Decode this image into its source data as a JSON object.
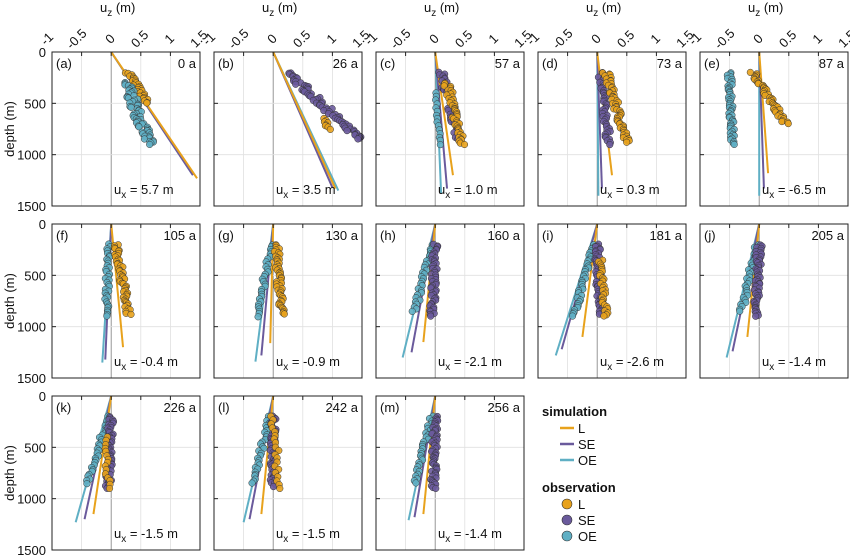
{
  "figure": {
    "xlabel": "u_z (m)",
    "ylabel": "depth (m)",
    "x_ticks": [
      "-1",
      "-0.5",
      "0",
      "0.5",
      "1",
      "1.5"
    ],
    "y_ticks": [
      "0",
      "500",
      "1000",
      "1500"
    ],
    "ux_prefix": "u",
    "ux_sub": "x"
  },
  "legend": {
    "simulation_title": "simulation",
    "observation_title": "observation",
    "items": [
      {
        "key": "L",
        "label": "L",
        "color": "#e8a21c"
      },
      {
        "key": "SE",
        "label": "SE",
        "color": "#6a5a9c"
      },
      {
        "key": "OE",
        "label": "OE",
        "color": "#5fafc4"
      }
    ]
  },
  "chart_data": {
    "type": "scatter",
    "xlim": [
      -1,
      1.5
    ],
    "ylim": [
      1500,
      0
    ],
    "grid": true,
    "panels": [
      {
        "label": "(a)",
        "time": "0 a",
        "ux": "= 5.7 m",
        "sim": {
          "L": [
            [
              0,
              0
            ],
            [
              1.45,
              1230
            ]
          ],
          "SE": [
            [
              0,
              0
            ],
            [
              1.38,
              1200
            ]
          ],
          "OE": [
            [
              0,
              0
            ],
            [
              1.36,
              1180
            ]
          ]
        },
        "obs": [
          {
            "key": "L",
            "x0": 0.3,
            "x1": 0.6,
            "d0": 200,
            "d1": 500,
            "n": 28,
            "j": 0.06
          },
          {
            "key": "OE",
            "x0": 0.25,
            "x1": 0.65,
            "d0": 300,
            "d1": 900,
            "n": 60,
            "j": 0.09
          }
        ]
      },
      {
        "label": "(b)",
        "time": "26 a",
        "ux": "= 3.5 m",
        "sim": {
          "L": [
            [
              0,
              0
            ],
            [
              1.05,
              1330
            ]
          ],
          "SE": [
            [
              0,
              0
            ],
            [
              1.0,
              1320
            ]
          ],
          "OE": [
            [
              0,
              0
            ],
            [
              1.1,
              1350
            ]
          ]
        },
        "obs": [
          {
            "key": "SE",
            "x0": 0.25,
            "x1": 1.45,
            "d0": 200,
            "d1": 850,
            "n": 65,
            "j": 0.09
          },
          {
            "key": "L",
            "x0": 0.85,
            "x1": 0.95,
            "d0": 650,
            "d1": 750,
            "n": 8,
            "j": 0.04
          }
        ]
      },
      {
        "label": "(c)",
        "time": "57 a",
        "ux": "= 1.0 m",
        "sim": {
          "L": [
            [
              0,
              0
            ],
            [
              0.3,
              1200
            ]
          ],
          "SE": [
            [
              0,
              0
            ],
            [
              0.2,
              1330
            ]
          ],
          "OE": [
            [
              0,
              0
            ],
            [
              0.1,
              1380
            ]
          ]
        },
        "obs": [
          {
            "key": "SE",
            "x0": 0.1,
            "x1": 0.4,
            "d0": 200,
            "d1": 850,
            "n": 50,
            "j": 0.06
          },
          {
            "key": "L",
            "x0": 0.2,
            "x1": 0.45,
            "d0": 300,
            "d1": 900,
            "n": 45,
            "j": 0.06
          },
          {
            "key": "OE",
            "x0": 0.02,
            "x1": 0.08,
            "d0": 400,
            "d1": 900,
            "n": 15,
            "j": 0.03
          }
        ]
      },
      {
        "label": "(d)",
        "time": "73 a",
        "ux": "= 0.3 m",
        "sim": {
          "L": [
            [
              0,
              0
            ],
            [
              0.25,
              1200
            ]
          ],
          "SE": [
            [
              0,
              0
            ],
            [
              0.08,
              1330
            ]
          ],
          "OE": [
            [
              0,
              0
            ],
            [
              0.02,
              1400
            ]
          ]
        },
        "obs": [
          {
            "key": "SE",
            "x0": 0.05,
            "x1": 0.2,
            "d0": 200,
            "d1": 900,
            "n": 45,
            "j": 0.05
          },
          {
            "key": "L",
            "x0": 0.15,
            "x1": 0.5,
            "d0": 200,
            "d1": 880,
            "n": 55,
            "j": 0.06
          }
        ]
      },
      {
        "label": "(e)",
        "time": "87 a",
        "ux": "= -6.5 m",
        "sim": {
          "L": [
            [
              0,
              0
            ],
            [
              0.15,
              1180
            ]
          ],
          "SE": [
            [
              0,
              0
            ],
            [
              0.08,
              1330
            ]
          ],
          "OE": [
            [
              0,
              0
            ],
            [
              0.0,
              1400
            ]
          ]
        },
        "obs": [
          {
            "key": "OE",
            "x0": -0.5,
            "x1": -0.45,
            "d0": 200,
            "d1": 900,
            "n": 50,
            "j": 0.04
          },
          {
            "key": "L",
            "x0": -0.1,
            "x1": 0.45,
            "d0": 200,
            "d1": 700,
            "n": 45,
            "j": 0.05
          }
        ]
      },
      {
        "label": "(f)",
        "time": "105 a",
        "ux": "= -0.4 m",
        "sim": {
          "L": [
            [
              0,
              0
            ],
            [
              0.2,
              1200
            ]
          ],
          "SE": [
            [
              0,
              0
            ],
            [
              -0.1,
              1320
            ]
          ],
          "OE": [
            [
              0,
              0
            ],
            [
              -0.15,
              1350
            ]
          ]
        },
        "obs": [
          {
            "key": "OE",
            "x0": -0.05,
            "x1": -0.08,
            "d0": 200,
            "d1": 900,
            "n": 35,
            "j": 0.04
          },
          {
            "key": "L",
            "x0": 0.08,
            "x1": 0.3,
            "d0": 200,
            "d1": 880,
            "n": 50,
            "j": 0.05
          }
        ]
      },
      {
        "label": "(g)",
        "time": "130 a",
        "ux": "= -0.9 m",
        "sim": {
          "L": [
            [
              0,
              0
            ],
            [
              -0.05,
              1160
            ]
          ],
          "SE": [
            [
              0,
              0
            ],
            [
              -0.2,
              1280
            ]
          ],
          "OE": [
            [
              0,
              0
            ],
            [
              -0.3,
              1340
            ]
          ]
        },
        "obs": [
          {
            "key": "OE",
            "x0": -0.05,
            "x1": -0.25,
            "d0": 200,
            "d1": 900,
            "n": 30,
            "j": 0.04
          },
          {
            "key": "L",
            "x0": 0.05,
            "x1": 0.15,
            "d0": 200,
            "d1": 880,
            "n": 50,
            "j": 0.05
          }
        ]
      },
      {
        "label": "(h)",
        "time": "160 a",
        "ux": "= -2.1 m",
        "sim": {
          "L": [
            [
              0,
              0
            ],
            [
              -0.2,
              1150
            ]
          ],
          "SE": [
            [
              0,
              0
            ],
            [
              -0.4,
              1250
            ]
          ],
          "OE": [
            [
              0,
              0
            ],
            [
              -0.55,
              1300
            ]
          ]
        },
        "obs": [
          {
            "key": "OE",
            "x0": -0.05,
            "x1": -0.35,
            "d0": 200,
            "d1": 850,
            "n": 30,
            "j": 0.04
          },
          {
            "key": "SE",
            "x0": 0.0,
            "x1": -0.05,
            "d0": 200,
            "d1": 900,
            "n": 50,
            "j": 0.05
          }
        ]
      },
      {
        "label": "(i)",
        "time": "181 a",
        "ux": "= -2.6 m",
        "sim": {
          "L": [
            [
              0,
              0
            ],
            [
              -0.25,
              1100
            ]
          ],
          "SE": [
            [
              0,
              0
            ],
            [
              -0.6,
              1220
            ]
          ],
          "OE": [
            [
              0,
              0
            ],
            [
              -0.7,
              1280
            ]
          ]
        },
        "obs": [
          {
            "key": "OE",
            "x0": -0.05,
            "x1": -0.4,
            "d0": 200,
            "d1": 900,
            "n": 35,
            "j": 0.04
          },
          {
            "key": "SE",
            "x0": 0.0,
            "x1": 0.05,
            "d0": 200,
            "d1": 880,
            "n": 55,
            "j": 0.05
          },
          {
            "key": "L",
            "x0": 0.05,
            "x1": 0.15,
            "d0": 350,
            "d1": 900,
            "n": 30,
            "j": 0.05
          }
        ]
      },
      {
        "label": "(j)",
        "time": "205 a",
        "ux": "= -1.4 m",
        "sim": {
          "L": [
            [
              0,
              0
            ],
            [
              -0.2,
              1100
            ]
          ],
          "SE": [
            [
              0,
              0
            ],
            [
              -0.45,
              1240
            ]
          ],
          "OE": [
            [
              0,
              0
            ],
            [
              -0.55,
              1300
            ]
          ]
        },
        "obs": [
          {
            "key": "OE",
            "x0": -0.05,
            "x1": -0.3,
            "d0": 200,
            "d1": 850,
            "n": 30,
            "j": 0.04
          },
          {
            "key": "SE",
            "x0": 0.0,
            "x1": -0.05,
            "d0": 200,
            "d1": 900,
            "n": 55,
            "j": 0.05
          }
        ]
      },
      {
        "label": "(k)",
        "time": "226 a",
        "ux": "= -1.5 m",
        "sim": {
          "L": [
            [
              0,
              0
            ],
            [
              -0.3,
              1150
            ]
          ],
          "SE": [
            [
              0,
              0
            ],
            [
              -0.45,
              1200
            ]
          ],
          "OE": [
            [
              0,
              0
            ],
            [
              -0.6,
              1230
            ]
          ]
        },
        "obs": [
          {
            "key": "OE",
            "x0": -0.05,
            "x1": -0.4,
            "d0": 200,
            "d1": 850,
            "n": 30,
            "j": 0.04
          },
          {
            "key": "SE",
            "x0": 0.0,
            "x1": -0.05,
            "d0": 200,
            "d1": 900,
            "n": 55,
            "j": 0.05
          },
          {
            "key": "L",
            "x0": -0.1,
            "x1": -0.05,
            "d0": 400,
            "d1": 900,
            "n": 15,
            "j": 0.04
          }
        ]
      },
      {
        "label": "(l)",
        "time": "242 a",
        "ux": "= -1.5 m",
        "sim": {
          "L": [
            [
              0,
              0
            ],
            [
              -0.2,
              1150
            ]
          ],
          "SE": [
            [
              0,
              0
            ],
            [
              -0.4,
              1200
            ]
          ],
          "OE": [
            [
              0,
              0
            ],
            [
              -0.5,
              1230
            ]
          ]
        },
        "obs": [
          {
            "key": "OE",
            "x0": -0.05,
            "x1": -0.35,
            "d0": 200,
            "d1": 850,
            "n": 30,
            "j": 0.04
          },
          {
            "key": "SE",
            "x0": 0.0,
            "x1": 0.0,
            "d0": 200,
            "d1": 880,
            "n": 55,
            "j": 0.05
          },
          {
            "key": "L",
            "x0": 0.0,
            "x1": 0.1,
            "d0": 200,
            "d1": 900,
            "n": 20,
            "j": 0.05
          }
        ]
      },
      {
        "label": "(m)",
        "time": "256 a",
        "ux": "= -1.4 m",
        "sim": {
          "L": [
            [
              0,
              0
            ],
            [
              -0.2,
              1150
            ]
          ],
          "SE": [
            [
              0,
              0
            ],
            [
              -0.35,
              1180
            ]
          ],
          "OE": [
            [
              0,
              0
            ],
            [
              -0.45,
              1210
            ]
          ]
        },
        "obs": [
          {
            "key": "OE",
            "x0": -0.05,
            "x1": -0.35,
            "d0": 200,
            "d1": 850,
            "n": 30,
            "j": 0.04
          },
          {
            "key": "SE",
            "x0": 0.0,
            "x1": -0.03,
            "d0": 200,
            "d1": 900,
            "n": 55,
            "j": 0.05
          }
        ]
      }
    ]
  }
}
